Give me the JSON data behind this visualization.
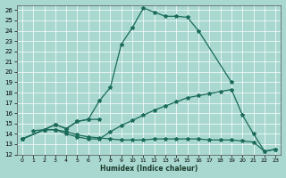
{
  "xlabel": "Humidex (Indice chaleur)",
  "background_color": "#a8d8d0",
  "grid_color": "#c8eae4",
  "line_color": "#1a6b5a",
  "xlim": [
    -0.5,
    23.5
  ],
  "ylim": [
    12,
    26.5
  ],
  "xticks": [
    0,
    1,
    2,
    3,
    4,
    5,
    6,
    7,
    8,
    9,
    10,
    11,
    12,
    13,
    14,
    15,
    16,
    17,
    18,
    19,
    20,
    21,
    22,
    23
  ],
  "yticks": [
    12,
    13,
    14,
    15,
    16,
    17,
    18,
    19,
    20,
    21,
    22,
    23,
    24,
    25,
    26
  ],
  "line1_x": [
    0,
    2,
    3,
    4,
    5,
    6,
    7,
    8,
    9,
    10,
    11,
    12,
    13,
    14,
    15,
    16,
    19
  ],
  "line1_y": [
    13.5,
    14.4,
    14.9,
    14.5,
    15.2,
    15.4,
    17.2,
    18.5,
    22.7,
    24.3,
    26.2,
    25.8,
    25.4,
    25.4,
    25.3,
    24.0,
    19.0
  ],
  "line2_x": [
    0,
    2,
    3,
    4,
    5,
    6,
    7,
    8,
    9,
    10,
    11,
    12,
    13,
    14,
    15,
    16,
    17,
    18,
    19,
    20,
    21,
    22,
    23
  ],
  "line2_y": [
    13.5,
    14.4,
    14.4,
    14.0,
    13.7,
    13.5,
    13.5,
    14.2,
    14.8,
    15.3,
    15.8,
    16.3,
    16.7,
    17.1,
    17.5,
    17.7,
    17.9,
    18.1,
    18.3,
    15.8,
    14.0,
    12.3,
    12.5
  ],
  "line3_x": [
    0,
    2,
    3,
    4,
    5,
    6,
    7,
    8,
    9,
    10,
    11,
    12,
    13,
    14,
    15,
    16,
    17,
    18,
    19,
    20,
    21,
    22,
    23
  ],
  "line3_y": [
    13.5,
    14.4,
    14.4,
    14.2,
    13.9,
    13.7,
    13.6,
    13.5,
    13.4,
    13.4,
    13.4,
    13.5,
    13.5,
    13.5,
    13.5,
    13.5,
    13.4,
    13.4,
    13.4,
    13.3,
    13.2,
    12.3,
    12.5
  ],
  "line4_x": [
    1,
    2,
    3,
    4,
    5,
    6,
    7
  ],
  "line4_y": [
    14.3,
    14.4,
    14.9,
    14.5,
    15.2,
    15.4,
    15.4
  ]
}
